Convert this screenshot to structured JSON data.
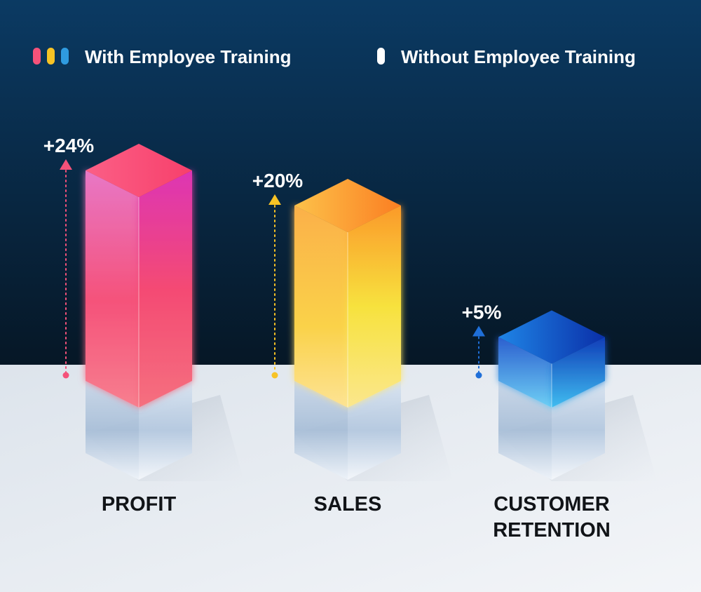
{
  "chart_data": {
    "type": "bar",
    "categories": [
      "PROFIT",
      "SALES",
      "CUSTOMER RETENTION"
    ],
    "category_lines": [
      [
        "PROFIT"
      ],
      [
        "SALES"
      ],
      [
        "CUSTOMER",
        "RETENTION"
      ]
    ],
    "series": [
      {
        "name": "With Employee Training",
        "values": [
          24,
          20,
          5
        ],
        "value_labels": [
          "+24%",
          "+20%",
          "+5%"
        ],
        "colors": [
          "#f5527a",
          "#f7c325",
          "#1f6fd8"
        ]
      },
      {
        "name": "Without Employee Training",
        "color": "#e8eef6"
      }
    ],
    "legend": {
      "position": "top",
      "with_label": "With Employee Training",
      "without_label": "Without Employee Training",
      "with_swatch_colors": [
        "#f5527a",
        "#f7c325",
        "#2f9be0"
      ],
      "without_swatch_color": "#ffffff"
    },
    "background": {
      "top": "#0b3a63",
      "bottom": "#061726",
      "floor": "#e9edf3"
    }
  }
}
